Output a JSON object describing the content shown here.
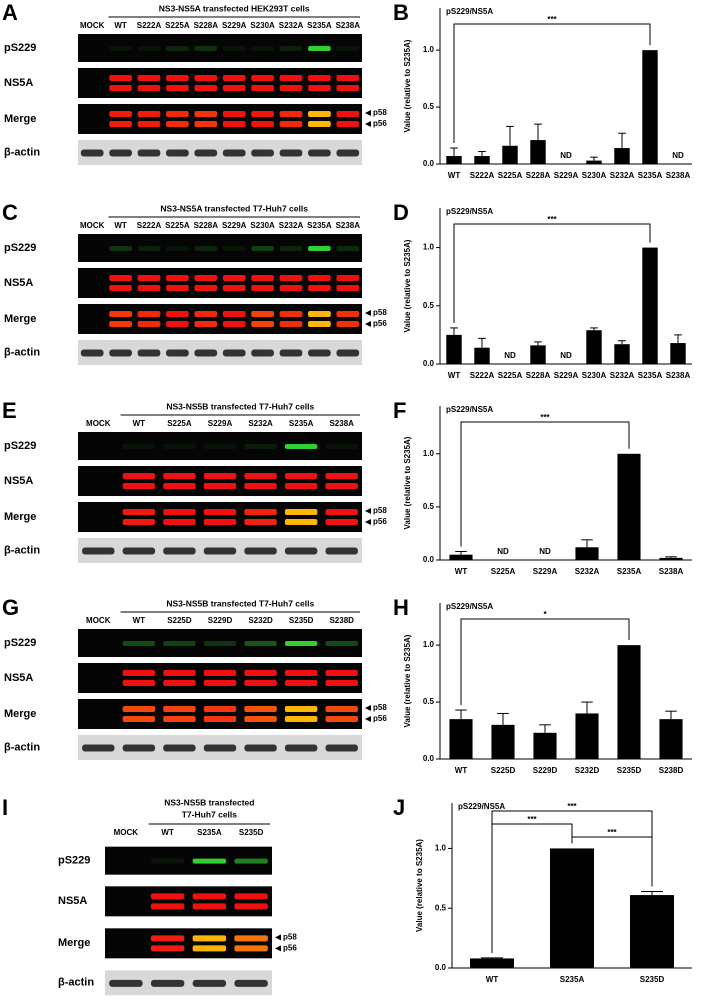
{
  "blots": [
    {
      "letter": "A",
      "title": "NS3-NS5A transfected HEK293T cells",
      "lanes": [
        "MOCK",
        "WT",
        "S222A",
        "S225A",
        "S228A",
        "S229A",
        "S230A",
        "S232A",
        "S235A",
        "S238A"
      ],
      "rows": [
        "pS229",
        "NS5A",
        "Merge",
        "β-actin"
      ],
      "markers": [
        "p58",
        "p56"
      ]
    },
    {
      "letter": "C",
      "title": "NS3-NS5A transfected T7-Huh7 cells",
      "lanes": [
        "MOCK",
        "WT",
        "S222A",
        "S225A",
        "S228A",
        "S229A",
        "S230A",
        "S232A",
        "S235A",
        "S238A"
      ],
      "rows": [
        "pS229",
        "NS5A",
        "Merge",
        "β-actin"
      ],
      "markers": [
        "p58",
        "p56"
      ]
    },
    {
      "letter": "E",
      "title": "NS3-NS5B transfected T7-Huh7 cells",
      "lanes": [
        "MOCK",
        "WT",
        "S225A",
        "S229A",
        "S232A",
        "S235A",
        "S238A"
      ],
      "rows": [
        "pS229",
        "NS5A",
        "Merge",
        "β-actin"
      ],
      "markers": [
        "p58",
        "p56"
      ]
    },
    {
      "letter": "G",
      "title": "NS3-NS5B transfected T7-Huh7 cells",
      "lanes": [
        "MOCK",
        "WT",
        "S225D",
        "S229D",
        "S232D",
        "S235D",
        "S238D"
      ],
      "rows": [
        "pS229",
        "NS5A",
        "Merge",
        "β-actin"
      ],
      "markers": [
        "p58",
        "p56"
      ]
    },
    {
      "letter": "I",
      "title": [
        "NS3-NS5B transfected",
        "T7-Huh7 cells"
      ],
      "lanes": [
        "MOCK",
        "WT",
        "S235A",
        "S235D"
      ],
      "rows": [
        "pS229",
        "NS5A",
        "Merge",
        "β-actin"
      ],
      "markers": [
        "p58",
        "p56"
      ]
    }
  ],
  "chart_data": [
    {
      "type": "bar",
      "letter": "B",
      "title": "pS229/NS5A",
      "ylabel": "Value (relative to S235A)",
      "color": "#000000",
      "categories": [
        "WT",
        "S222A",
        "S225A",
        "S228A",
        "S229A",
        "S230A",
        "S232A",
        "S235A",
        "S238A"
      ],
      "values": [
        0.07,
        0.07,
        0.16,
        0.21,
        null,
        0.03,
        0.14,
        1.0,
        null
      ],
      "errors": [
        0.07,
        0.04,
        0.17,
        0.14,
        null,
        0.03,
        0.13,
        null,
        null
      ],
      "value_labels": [
        null,
        null,
        null,
        null,
        "ND",
        null,
        null,
        null,
        "ND"
      ],
      "ylim": [
        0,
        1.37
      ],
      "yticks": [
        {
          "value": 0,
          "label": "0.0"
        },
        {
          "value": 0.5,
          "label": "0.5"
        },
        {
          "value": 1,
          "label": "1.0"
        }
      ],
      "annotations": [
        {
          "between": [
            "WT",
            "S235A"
          ],
          "label": "***"
        }
      ]
    },
    {
      "type": "bar",
      "letter": "D",
      "title": "pS229/NS5A",
      "ylabel": "Value (relative to S235A)",
      "color": "#000000",
      "categories": [
        "WT",
        "S222A",
        "S225A",
        "S228A",
        "S229A",
        "S230A",
        "S232A",
        "S235A",
        "S238A"
      ],
      "values": [
        0.25,
        0.14,
        null,
        0.16,
        null,
        0.29,
        0.17,
        1.0,
        0.18
      ],
      "errors": [
        0.06,
        0.08,
        null,
        0.03,
        null,
        0.02,
        0.03,
        null,
        0.07
      ],
      "value_labels": [
        null,
        null,
        "ND",
        null,
        "ND",
        null,
        null,
        null,
        null
      ],
      "ylim": [
        0,
        1.34
      ],
      "yticks": [
        {
          "value": 0,
          "label": "0.0"
        },
        {
          "value": 0.5,
          "label": "0.5"
        },
        {
          "value": 1,
          "label": "1.0"
        }
      ],
      "annotations": [
        {
          "between": [
            "WT",
            "S235A"
          ],
          "label": "***"
        }
      ]
    },
    {
      "type": "bar",
      "letter": "F",
      "title": "pS229/NS5A",
      "ylabel": "Value (relative to S235A)",
      "color": "#000000",
      "categories": [
        "WT",
        "S225A",
        "S229A",
        "S232A",
        "S235A",
        "S238A"
      ],
      "values": [
        0.05,
        null,
        null,
        0.12,
        1.0,
        0.02
      ],
      "errors": [
        0.03,
        null,
        null,
        0.07,
        null,
        0.01
      ],
      "value_labels": [
        null,
        "ND",
        "ND",
        null,
        null,
        null
      ],
      "ylim": [
        0,
        1.45
      ],
      "yticks": [
        {
          "value": 0,
          "label": "0.0"
        },
        {
          "value": 0.5,
          "label": "0.5"
        },
        {
          "value": 1,
          "label": "1.0"
        }
      ],
      "annotations": [
        {
          "between": [
            "WT",
            "S235A"
          ],
          "label": "***"
        }
      ]
    },
    {
      "type": "bar",
      "letter": "H",
      "title": "pS229/NS5A",
      "ylabel": "Value (relative to S235A)",
      "color": "#000000",
      "categories": [
        "WT",
        "S225D",
        "S229D",
        "S232D",
        "S235D",
        "S238D"
      ],
      "values": [
        0.35,
        0.3,
        0.23,
        0.4,
        1.0,
        0.35
      ],
      "errors": [
        0.08,
        0.1,
        0.07,
        0.1,
        null,
        0.07
      ],
      "ylim": [
        0,
        1.37
      ],
      "yticks": [
        {
          "value": 0,
          "label": "0.0"
        },
        {
          "value": 0.5,
          "label": "0.5"
        },
        {
          "value": 1,
          "label": "1.0"
        }
      ],
      "annotations": [
        {
          "between": [
            "WT",
            "S235D"
          ],
          "label": "*"
        }
      ]
    },
    {
      "type": "bar",
      "letter": "J",
      "title": "pS229/NS5A",
      "ylabel": "Value (relative to S235A)",
      "color": "#000000",
      "categories": [
        "WT",
        "S235A",
        "S235D"
      ],
      "values": [
        0.08,
        1.0,
        0.61
      ],
      "errors": [
        0.005,
        null,
        0.03
      ],
      "ylim": [
        0,
        1.38
      ],
      "yticks": [
        {
          "value": 0,
          "label": "0.0"
        },
        {
          "value": 0.5,
          "label": "0.5"
        },
        {
          "value": 1,
          "label": "1.0"
        }
      ],
      "annotations": [
        {
          "between": [
            "WT",
            "S235D"
          ],
          "label": "***"
        },
        {
          "between": [
            "WT",
            "S235A"
          ],
          "label": "***"
        },
        {
          "between": [
            "S235A",
            "S235D"
          ],
          "label": "***"
        }
      ]
    }
  ]
}
